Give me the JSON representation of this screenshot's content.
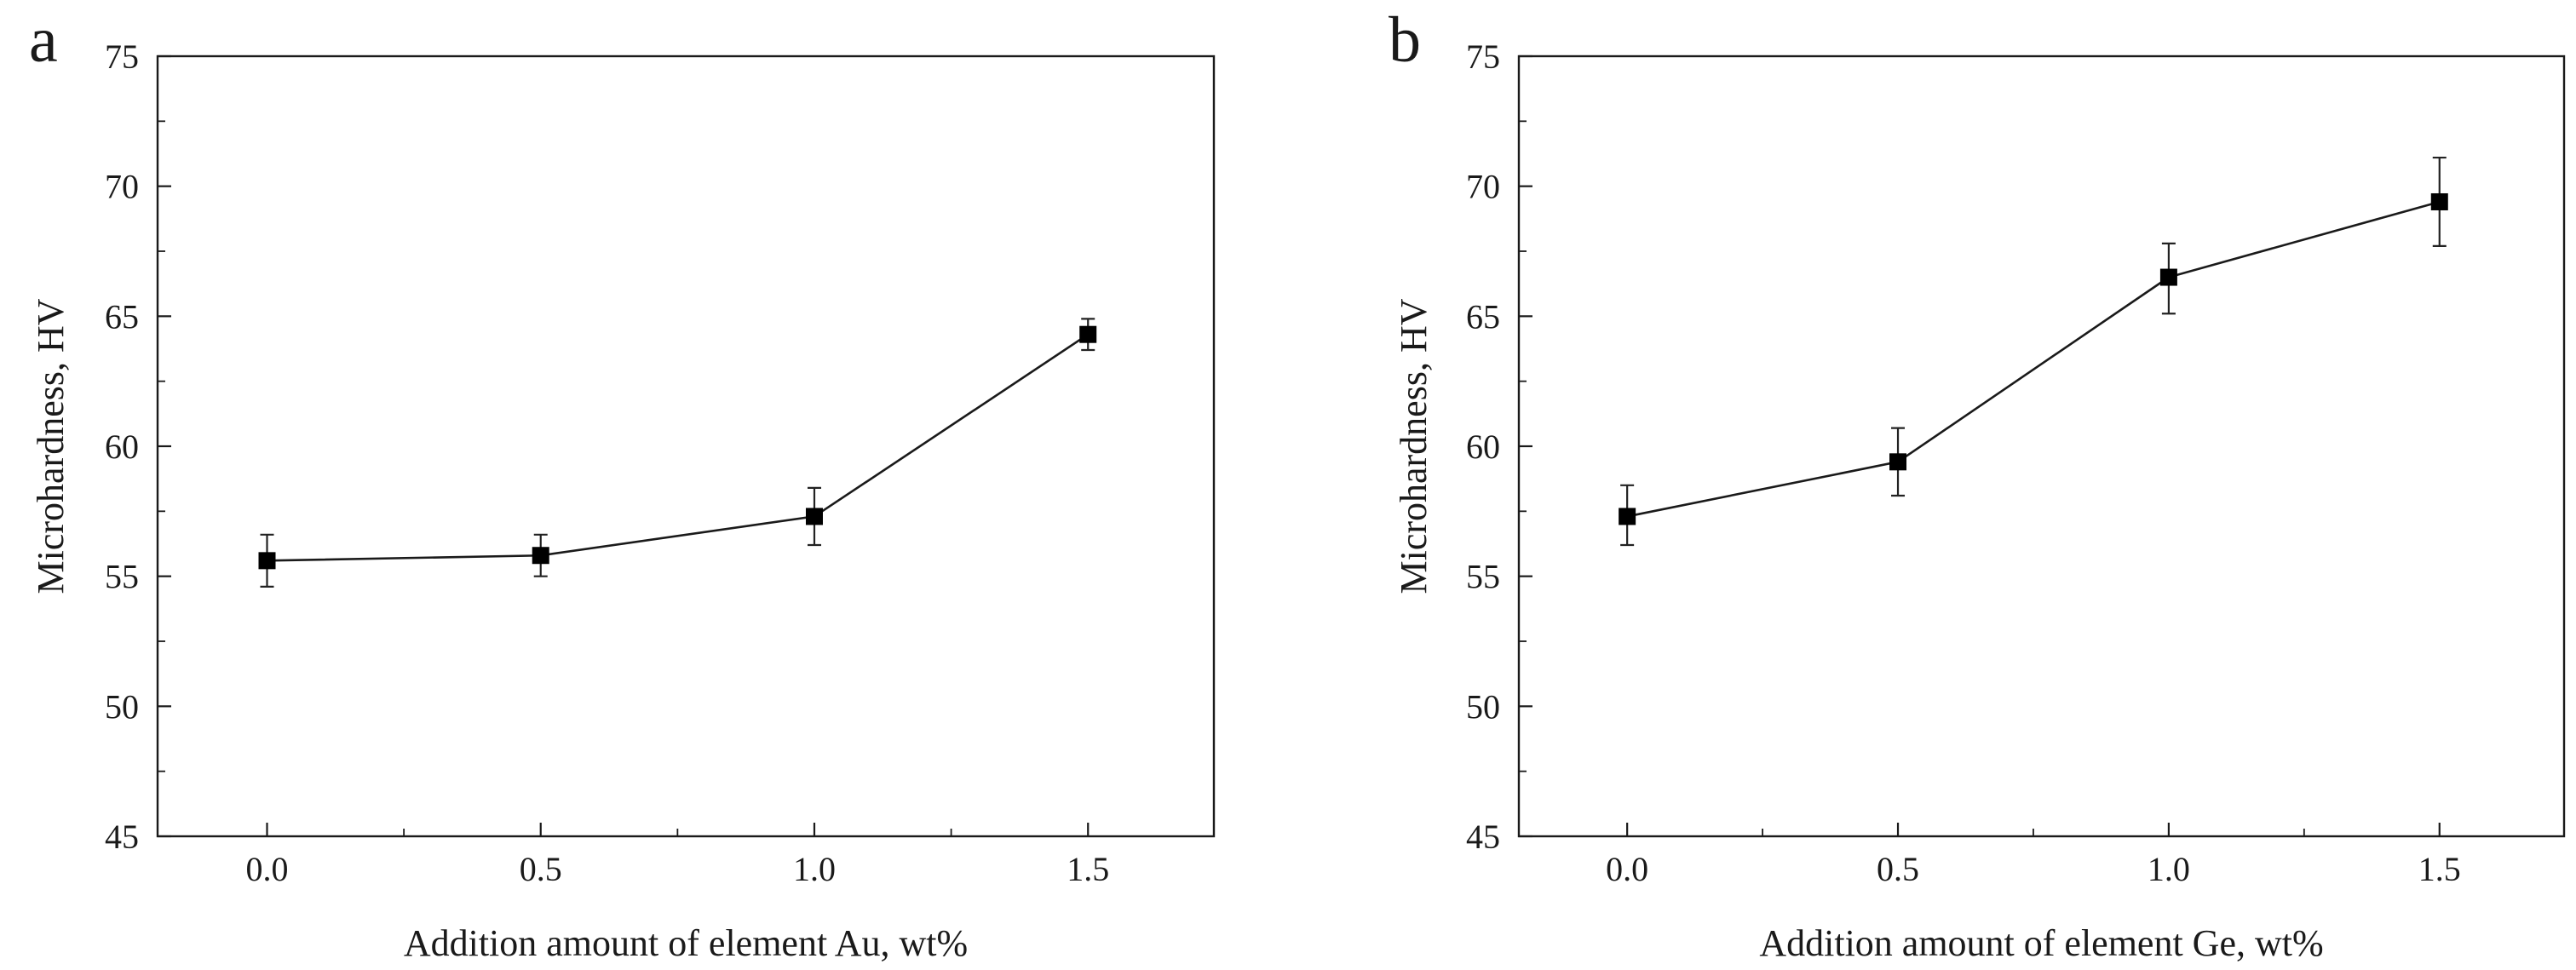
{
  "chart_data": [
    {
      "type": "line",
      "panel_label": "a",
      "xlabel": "Addition amount of element Au, wt%",
      "ylabel": "Microhardness, HV",
      "x": [
        0.0,
        0.5,
        1.0,
        1.5
      ],
      "x_tick_labels": [
        "0.0",
        "0.5",
        "1.0",
        "1.5"
      ],
      "xlim": [
        -0.2,
        1.73
      ],
      "y_ticks": [
        45,
        50,
        55,
        60,
        65,
        70,
        75
      ],
      "ylim": [
        45,
        75
      ],
      "series": [
        {
          "name": "Au",
          "values": [
            55.6,
            55.8,
            57.3,
            64.3
          ],
          "error_low": [
            54.6,
            55.0,
            56.2,
            63.7
          ],
          "error_high": [
            56.6,
            56.6,
            58.4,
            64.9
          ]
        }
      ]
    },
    {
      "type": "line",
      "panel_label": "b",
      "xlabel": "Addition amount of element Ge, wt%",
      "ylabel": "Microhardness, HV",
      "x": [
        0.0,
        0.5,
        1.0,
        1.5
      ],
      "x_tick_labels": [
        "0.0",
        "0.5",
        "1.0",
        "1.5"
      ],
      "xlim": [
        -0.2,
        1.73
      ],
      "y_ticks": [
        45,
        50,
        55,
        60,
        65,
        70,
        75
      ],
      "ylim": [
        45,
        75
      ],
      "series": [
        {
          "name": "Ge",
          "values": [
            57.3,
            59.4,
            66.5,
            69.4
          ],
          "error_low": [
            56.2,
            58.1,
            65.1,
            67.7
          ],
          "error_high": [
            58.5,
            60.7,
            67.8,
            71.1
          ]
        }
      ]
    }
  ]
}
